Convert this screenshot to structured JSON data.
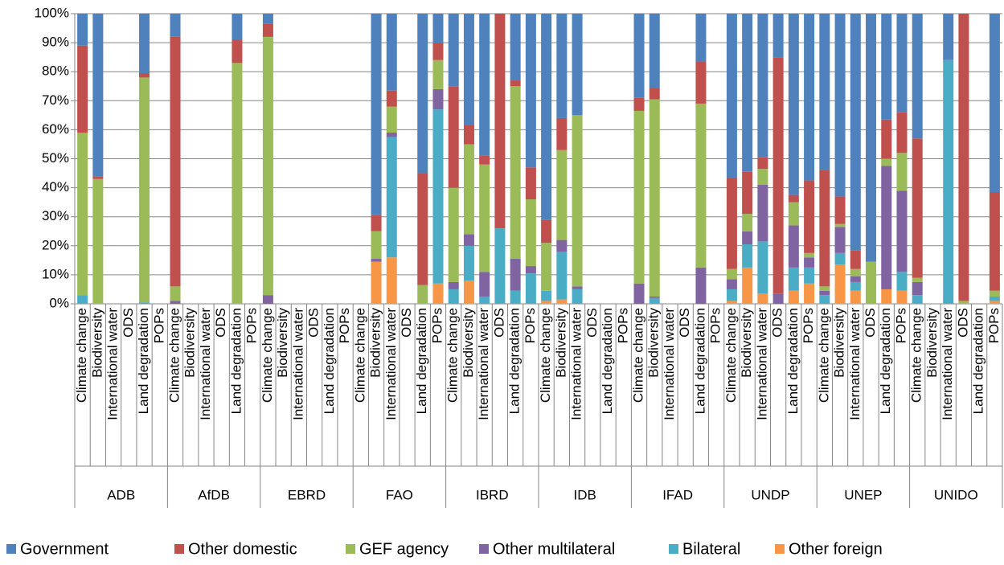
{
  "chart_data": {
    "type": "stacked_bar_100",
    "groups": [
      "ADB",
      "AfDB",
      "EBRD",
      "FAO",
      "IBRD",
      "IDB",
      "IFAD",
      "UNDP",
      "UNEP",
      "UNIDO"
    ],
    "categories": [
      "Climate change",
      "Biodiversity",
      "International water",
      "ODS",
      "Land degradation",
      "POPs",
      "Climate change",
      "Biodiversity",
      "International water",
      "ODS",
      "Land degradation",
      "POPs",
      "Climate change",
      "Biodiversity",
      "International water",
      "ODS",
      "Land degradation",
      "POPs",
      "Climate change",
      "Biodiversity",
      "International water",
      "ODS",
      "Land degradation",
      "POPs",
      "Climate change",
      "Biodiversity",
      "International water",
      "ODS",
      "Land degradation",
      "POPs",
      "Climate change",
      "Biodiversity",
      "International water",
      "ODS",
      "Land degradation",
      "POPs",
      "Climate change",
      "Biodiversity",
      "International water",
      "ODS",
      "Land degradation",
      "POPs",
      "Climate change",
      "Biodiversity",
      "International water",
      "ODS",
      "Land degradation",
      "POPs",
      "Climate change",
      "Biodiversity",
      "International water",
      "ODS",
      "Land degradation",
      "POPs",
      "Climate change",
      "Biodiversity",
      "International water",
      "ODS",
      "Land degradation",
      "POPs"
    ],
    "series": [
      {
        "name": "Government",
        "color": "#4F81BD",
        "values": [
          11,
          56,
          null,
          null,
          20.5,
          null,
          8,
          null,
          null,
          null,
          9,
          null,
          3.5,
          null,
          null,
          null,
          null,
          null,
          null,
          69.5,
          26.5,
          null,
          55,
          10,
          25,
          38.5,
          49,
          0,
          23,
          53,
          71,
          36,
          35,
          null,
          null,
          null,
          29,
          25.5,
          null,
          null,
          16.5,
          null,
          56.5,
          54.5,
          49.5,
          15,
          62.5,
          57.5,
          54,
          63,
          81.5,
          85.5,
          36.5,
          34,
          43,
          null,
          16,
          0,
          null,
          61.5
        ]
      },
      {
        "name": "Other domestic",
        "color": "#C0504D",
        "values": [
          30,
          1,
          null,
          null,
          1.5,
          null,
          86,
          null,
          null,
          null,
          8,
          null,
          4.5,
          null,
          null,
          null,
          null,
          null,
          null,
          5.5,
          5.5,
          null,
          38.5,
          6,
          35,
          6.5,
          3,
          74,
          2,
          11,
          8,
          11,
          0,
          null,
          null,
          null,
          4.5,
          4,
          null,
          null,
          14.5,
          null,
          31.5,
          14.5,
          4,
          81.5,
          2.5,
          25,
          40,
          9.5,
          6.5,
          0,
          13.5,
          14,
          48,
          null,
          0,
          99,
          null,
          34
        ]
      },
      {
        "name": "GEF agency",
        "color": "#9BBB59",
        "values": [
          56,
          43,
          null,
          null,
          77.5,
          null,
          5,
          null,
          null,
          null,
          83,
          null,
          89,
          null,
          null,
          null,
          null,
          null,
          null,
          9.5,
          9,
          null,
          6.5,
          10,
          32.5,
          31,
          37,
          0,
          59.5,
          23,
          16.5,
          31,
          59,
          null,
          null,
          null,
          59.5,
          68,
          null,
          null,
          56.5,
          null,
          3.5,
          6,
          5.5,
          0,
          8,
          1.5,
          1.5,
          1,
          2.5,
          14.5,
          2.5,
          13,
          1.5,
          null,
          0,
          1,
          null,
          2
        ]
      },
      {
        "name": "Other multilateral",
        "color": "#8064A2",
        "values": [
          0,
          0,
          null,
          null,
          0,
          null,
          1,
          null,
          null,
          null,
          0,
          null,
          3,
          null,
          null,
          null,
          null,
          null,
          null,
          1,
          1.5,
          null,
          0,
          7,
          2.5,
          4,
          8.5,
          0,
          11,
          2.5,
          0,
          4,
          1,
          null,
          null,
          null,
          7,
          0.5,
          null,
          null,
          12.5,
          null,
          3.5,
          4.5,
          19.5,
          3.5,
          14.5,
          3.5,
          1.5,
          9,
          2,
          0,
          42.5,
          28,
          4.5,
          null,
          0,
          0,
          null,
          0
        ]
      },
      {
        "name": "Bilateral",
        "color": "#4BACC6",
        "values": [
          3,
          0,
          null,
          null,
          0.5,
          null,
          0,
          null,
          null,
          null,
          0,
          null,
          0,
          null,
          null,
          null,
          null,
          null,
          null,
          0,
          41.5,
          null,
          0,
          60,
          5,
          12,
          2.5,
          26,
          4.5,
          10.5,
          3.5,
          16.5,
          5,
          null,
          null,
          null,
          0,
          2,
          null,
          null,
          0,
          null,
          4,
          8,
          18,
          0,
          8,
          5.5,
          3,
          4,
          3,
          0,
          0,
          6.5,
          3,
          null,
          84,
          0,
          null,
          1.5
        ]
      },
      {
        "name": "Other foreign",
        "color": "#F79646",
        "values": [
          0,
          0,
          null,
          null,
          0,
          null,
          0,
          null,
          null,
          null,
          0,
          null,
          0,
          null,
          null,
          null,
          null,
          null,
          null,
          14.5,
          16,
          null,
          0,
          7,
          0,
          8,
          0,
          0,
          0,
          0,
          1,
          1.5,
          0,
          null,
          null,
          null,
          0,
          0,
          null,
          null,
          0,
          null,
          1,
          12.5,
          3.5,
          0,
          4.5,
          7,
          0,
          13.5,
          4.5,
          0,
          5,
          4.5,
          0,
          null,
          0,
          0,
          null,
          1
        ]
      }
    ],
    "ylim": [
      0,
      100
    ],
    "yticks": [
      {
        "value": 0,
        "label": "0%"
      },
      {
        "value": 10,
        "label": "10%"
      },
      {
        "value": 20,
        "label": "20%"
      },
      {
        "value": 30,
        "label": "30%"
      },
      {
        "value": 40,
        "label": "40%"
      },
      {
        "value": 50,
        "label": "50%"
      },
      {
        "value": 60,
        "label": "60%"
      },
      {
        "value": 70,
        "label": "70%"
      },
      {
        "value": 80,
        "label": "80%"
      },
      {
        "value": 90,
        "label": "90%"
      },
      {
        "value": 100,
        "label": "100%"
      }
    ],
    "grid": true,
    "legend": "bottom"
  }
}
